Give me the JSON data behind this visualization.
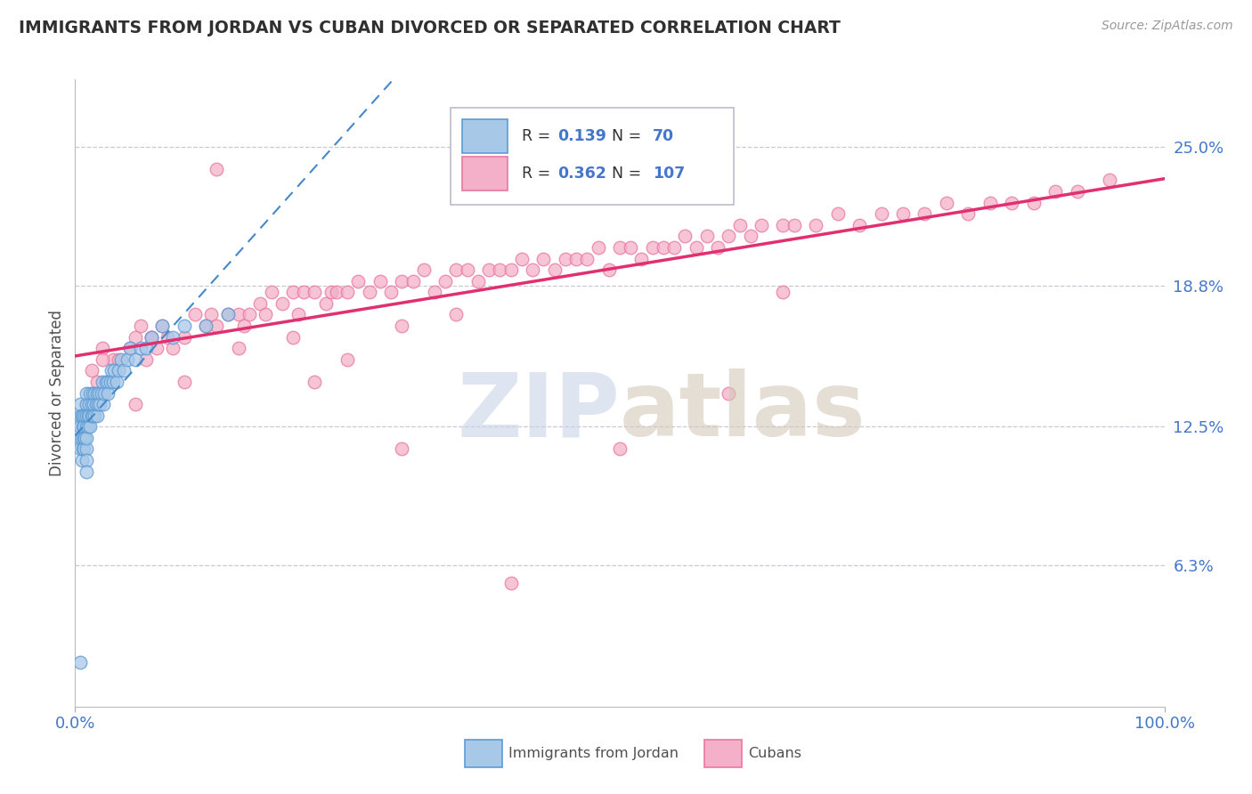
{
  "title": "IMMIGRANTS FROM JORDAN VS CUBAN DIVORCED OR SEPARATED CORRELATION CHART",
  "source_text": "Source: ZipAtlas.com",
  "ylabel": "Divorced or Separated",
  "xlim": [
    0.0,
    1.0
  ],
  "ylim": [
    0.0,
    0.28
  ],
  "ytick_vals": [
    0.063,
    0.125,
    0.188,
    0.25
  ],
  "ytick_labels": [
    "6.3%",
    "12.5%",
    "18.8%",
    "25.0%"
  ],
  "xticks": [
    0.0,
    1.0
  ],
  "xtick_labels": [
    "0.0%",
    "100.0%"
  ],
  "legend_r_values": [
    "0.139",
    "0.362"
  ],
  "legend_n_values": [
    "70",
    "107"
  ],
  "blue_color": "#5b9bd5",
  "blue_fill": "#a8c8e8",
  "pink_color": "#e878a0",
  "pink_fill": "#f4b0c8",
  "trend_blue_color": "#4488cc",
  "trend_pink_color": "#e03070",
  "grid_color": "#c8c8d8",
  "title_color": "#303030",
  "axis_label_color": "#505050",
  "tick_label_color": "#4477cc",
  "watermark_zip_color": "#c8d4e8",
  "watermark_atlas_color": "#d4c8b8",
  "blue_scatter_x": [
    0.005,
    0.005,
    0.005,
    0.005,
    0.005,
    0.006,
    0.006,
    0.006,
    0.007,
    0.007,
    0.007,
    0.008,
    0.008,
    0.008,
    0.009,
    0.009,
    0.01,
    0.01,
    0.01,
    0.01,
    0.01,
    0.01,
    0.01,
    0.01,
    0.012,
    0.012,
    0.013,
    0.013,
    0.014,
    0.014,
    0.015,
    0.015,
    0.016,
    0.016,
    0.017,
    0.018,
    0.018,
    0.019,
    0.02,
    0.02,
    0.021,
    0.022,
    0.023,
    0.024,
    0.025,
    0.026,
    0.027,
    0.028,
    0.03,
    0.03,
    0.032,
    0.033,
    0.035,
    0.036,
    0.038,
    0.04,
    0.042,
    0.045,
    0.048,
    0.05,
    0.055,
    0.06,
    0.065,
    0.07,
    0.08,
    0.09,
    0.1,
    0.12,
    0.14,
    0.005
  ],
  "blue_scatter_y": [
    0.115,
    0.125,
    0.13,
    0.135,
    0.12,
    0.11,
    0.12,
    0.13,
    0.115,
    0.125,
    0.13,
    0.12,
    0.125,
    0.115,
    0.13,
    0.12,
    0.125,
    0.13,
    0.135,
    0.14,
    0.115,
    0.12,
    0.11,
    0.105,
    0.13,
    0.125,
    0.135,
    0.13,
    0.125,
    0.14,
    0.13,
    0.135,
    0.13,
    0.14,
    0.135,
    0.14,
    0.13,
    0.135,
    0.13,
    0.14,
    0.135,
    0.14,
    0.135,
    0.14,
    0.145,
    0.135,
    0.14,
    0.145,
    0.145,
    0.14,
    0.145,
    0.15,
    0.145,
    0.15,
    0.145,
    0.15,
    0.155,
    0.15,
    0.155,
    0.16,
    0.155,
    0.16,
    0.16,
    0.165,
    0.17,
    0.165,
    0.17,
    0.17,
    0.175,
    0.02
  ],
  "pink_scatter_x": [
    0.01,
    0.015,
    0.02,
    0.025,
    0.03,
    0.035,
    0.04,
    0.05,
    0.055,
    0.06,
    0.065,
    0.07,
    0.075,
    0.08,
    0.085,
    0.09,
    0.1,
    0.11,
    0.12,
    0.125,
    0.13,
    0.14,
    0.15,
    0.155,
    0.16,
    0.17,
    0.175,
    0.18,
    0.19,
    0.2,
    0.205,
    0.21,
    0.22,
    0.23,
    0.235,
    0.24,
    0.25,
    0.26,
    0.27,
    0.28,
    0.29,
    0.3,
    0.31,
    0.32,
    0.33,
    0.34,
    0.35,
    0.36,
    0.37,
    0.38,
    0.39,
    0.4,
    0.41,
    0.42,
    0.43,
    0.44,
    0.45,
    0.46,
    0.47,
    0.48,
    0.49,
    0.5,
    0.51,
    0.52,
    0.53,
    0.54,
    0.55,
    0.56,
    0.57,
    0.58,
    0.59,
    0.6,
    0.61,
    0.62,
    0.63,
    0.65,
    0.66,
    0.68,
    0.7,
    0.72,
    0.74,
    0.76,
    0.78,
    0.8,
    0.82,
    0.84,
    0.86,
    0.88,
    0.9,
    0.92,
    0.95,
    0.025,
    0.055,
    0.13,
    0.22,
    0.3,
    0.4,
    0.5,
    0.6,
    0.07,
    0.1,
    0.15,
    0.2,
    0.25,
    0.3,
    0.35,
    0.65
  ],
  "pink_scatter_y": [
    0.135,
    0.15,
    0.145,
    0.16,
    0.145,
    0.155,
    0.155,
    0.16,
    0.165,
    0.17,
    0.155,
    0.165,
    0.16,
    0.17,
    0.165,
    0.16,
    0.165,
    0.175,
    0.17,
    0.175,
    0.17,
    0.175,
    0.175,
    0.17,
    0.175,
    0.18,
    0.175,
    0.185,
    0.18,
    0.185,
    0.175,
    0.185,
    0.185,
    0.18,
    0.185,
    0.185,
    0.185,
    0.19,
    0.185,
    0.19,
    0.185,
    0.19,
    0.19,
    0.195,
    0.185,
    0.19,
    0.195,
    0.195,
    0.19,
    0.195,
    0.195,
    0.195,
    0.2,
    0.195,
    0.2,
    0.195,
    0.2,
    0.2,
    0.2,
    0.205,
    0.195,
    0.205,
    0.205,
    0.2,
    0.205,
    0.205,
    0.205,
    0.21,
    0.205,
    0.21,
    0.205,
    0.21,
    0.215,
    0.21,
    0.215,
    0.215,
    0.215,
    0.215,
    0.22,
    0.215,
    0.22,
    0.22,
    0.22,
    0.225,
    0.22,
    0.225,
    0.225,
    0.225,
    0.23,
    0.23,
    0.235,
    0.155,
    0.135,
    0.24,
    0.145,
    0.115,
    0.055,
    0.115,
    0.14,
    0.165,
    0.145,
    0.16,
    0.165,
    0.155,
    0.17,
    0.175,
    0.185
  ]
}
